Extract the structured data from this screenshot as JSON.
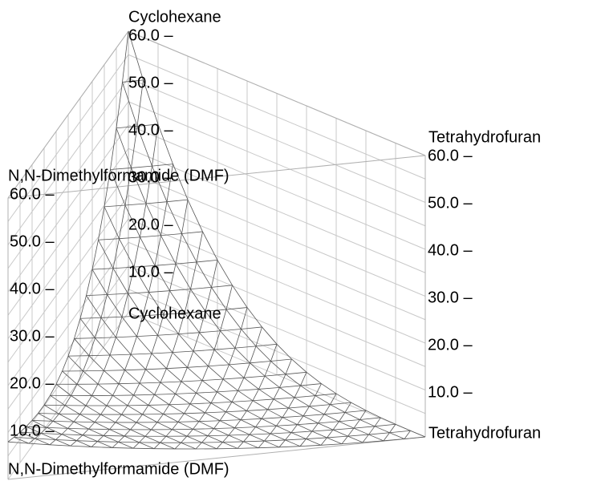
{
  "labels": {
    "cyclohexane_top": "Cyclohexane",
    "cyclohexane_bottom": "Cyclohexane",
    "dmf_top": "N,N-Dimethylformamide (DMF)",
    "dmf_bottom": "N,N-Dimethylformamide (DMF)",
    "thf_top": "Tetrahydrofuran",
    "thf_bottom": "Tetrahydrofuran"
  },
  "axes": {
    "back_ticks": [
      "60.0 –",
      "50.0 –",
      "40.0 –",
      "30.0 –",
      "20.0 –",
      "10.0 –"
    ],
    "left_ticks": [
      "60.0 –",
      "50.0 –",
      "40.0 –",
      "30.0 –",
      "20.0 –",
      "10.0 –"
    ],
    "right_ticks": [
      "60.0 –",
      "50.0 –",
      "40.0 –",
      "30.0 –",
      "20.0 –",
      "10.0 –"
    ]
  }
}
